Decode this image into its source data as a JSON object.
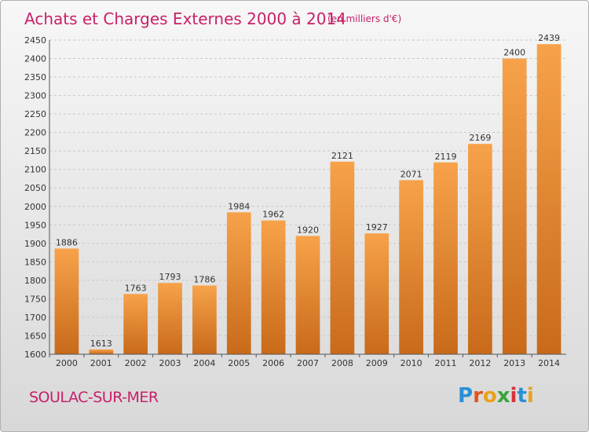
{
  "chart_data": {
    "type": "bar",
    "title": "Achats et Charges Externes 2000 à 2014",
    "subtitle": "(en milliers d'€)",
    "categories": [
      "2000",
      "2001",
      "2002",
      "2003",
      "2004",
      "2005",
      "2006",
      "2007",
      "2008",
      "2009",
      "2010",
      "2011",
      "2012",
      "2013",
      "2014"
    ],
    "values": [
      1886,
      1613,
      1763,
      1793,
      1786,
      1984,
      1962,
      1920,
      2121,
      1927,
      2071,
      2119,
      2169,
      2400,
      2439
    ],
    "ylim": [
      1600,
      2450
    ],
    "yticks": [
      1600,
      1650,
      1700,
      1750,
      1800,
      1850,
      1900,
      1950,
      2000,
      2050,
      2100,
      2150,
      2200,
      2250,
      2300,
      2350,
      2400,
      2450
    ],
    "grid": true,
    "bar_color_light": "#f7a24a",
    "bar_color_dark": "#c86a1a"
  },
  "footer": {
    "city": "SOULAC-SUR-MER",
    "logo": [
      "P",
      "r",
      "o",
      "x",
      "i",
      "t",
      "i"
    ],
    "logo_colors": [
      "#2a8fd8",
      "#e0561c",
      "#e9a21b",
      "#3aa43a",
      "#d8323a",
      "#2a8fd8",
      "#e9a21b"
    ]
  }
}
